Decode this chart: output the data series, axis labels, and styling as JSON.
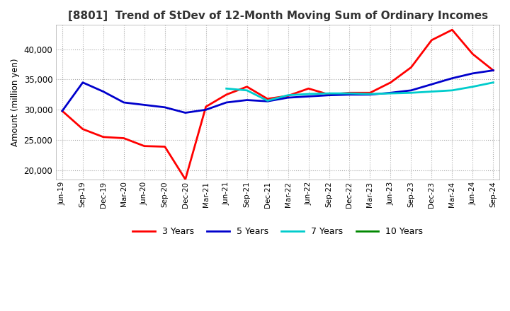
{
  "title": "[8801]  Trend of StDev of 12-Month Moving Sum of Ordinary Incomes",
  "ylabel": "Amount (million yen)",
  "ylim": [
    18500,
    44000
  ],
  "yticks": [
    20000,
    25000,
    30000,
    35000,
    40000
  ],
  "background_color": "#ffffff",
  "title_fontsize": 11,
  "legend_entries": [
    "3 Years",
    "5 Years",
    "7 Years",
    "10 Years"
  ],
  "legend_colors": [
    "#ff0000",
    "#0000cc",
    "#00cccc",
    "#008800"
  ],
  "x_labels": [
    "Jun-19",
    "Sep-19",
    "Dec-19",
    "Mar-20",
    "Jun-20",
    "Sep-20",
    "Dec-20",
    "Mar-21",
    "Jun-21",
    "Sep-21",
    "Dec-21",
    "Mar-22",
    "Jun-22",
    "Sep-22",
    "Dec-22",
    "Mar-23",
    "Jun-23",
    "Sep-23",
    "Dec-23",
    "Mar-24",
    "Jun-24",
    "Sep-24"
  ],
  "series_3y": [
    29800,
    26800,
    25500,
    25300,
    24000,
    23900,
    18500,
    30500,
    32500,
    33800,
    31800,
    32300,
    33500,
    32500,
    32800,
    32800,
    34500,
    37000,
    41500,
    43200,
    39200,
    36500
  ],
  "series_5y": [
    29800,
    34500,
    33000,
    31200,
    30800,
    30400,
    29500,
    30000,
    31200,
    31600,
    31400,
    32000,
    32200,
    32400,
    32500,
    32500,
    32800,
    33200,
    34200,
    35200,
    36000,
    36500
  ],
  "series_7y": [
    null,
    null,
    null,
    null,
    null,
    null,
    null,
    null,
    33500,
    33200,
    31500,
    32400,
    32600,
    32700,
    32700,
    32600,
    32700,
    32800,
    33000,
    33200,
    33800,
    34500
  ],
  "series_10y": [
    null,
    null,
    null,
    null,
    null,
    null,
    null,
    null,
    null,
    null,
    null,
    null,
    null,
    null,
    null,
    null,
    null,
    null,
    null,
    null,
    null,
    null
  ]
}
